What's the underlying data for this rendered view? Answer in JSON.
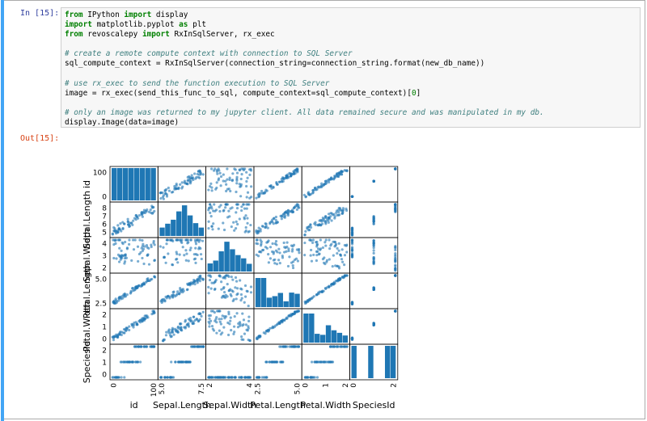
{
  "cell": {
    "in_prompt": "In [15]:",
    "out_prompt": "Out[15]:",
    "code": [
      [
        {
          "text": "from",
          "style": "keyword"
        },
        {
          "text": " IPython "
        },
        {
          "text": "import",
          "style": "keyword"
        },
        {
          "text": " display"
        }
      ],
      [
        {
          "text": "import",
          "style": "keyword"
        },
        {
          "text": " matplotlib.pyplot "
        },
        {
          "text": "as",
          "style": "keyword"
        },
        {
          "text": " plt"
        }
      ],
      [
        {
          "text": "from",
          "style": "keyword"
        },
        {
          "text": " revoscalepy "
        },
        {
          "text": "import",
          "style": "keyword"
        },
        {
          "text": " RxInSqlServer, rx_exec"
        }
      ],
      [],
      [
        {
          "text": "# create a remote compute context with connection to SQL Server",
          "style": "comment"
        }
      ],
      [
        {
          "text": "sql_compute_context = RxInSqlServer(connection_string=connection_string.format(new_db_name))"
        }
      ],
      [],
      [
        {
          "text": "# use rx_exec to send the function execution to SQL Server",
          "style": "comment"
        }
      ],
      [
        {
          "text": "image = rx_exec(send_this_func_to_sql, compute_context=sql_compute_context)["
        },
        {
          "text": "0",
          "style": "number"
        },
        {
          "text": "]"
        }
      ],
      [],
      [
        {
          "text": "# only an image was returned to my jupyter client. All data remained secure and was manipulated in my db.",
          "style": "comment"
        }
      ],
      [
        {
          "text": "display.Image(data=image)"
        }
      ]
    ]
  },
  "figure": {
    "rows": [
      {
        "label": "id",
        "ticks": [
          "100",
          "0"
        ]
      },
      {
        "label": "Sepal.Length",
        "ticks": [
          "8",
          "7",
          "6",
          "5"
        ]
      },
      {
        "label": "Sepal.Width",
        "ticks": [
          "4",
          "3",
          "2"
        ]
      },
      {
        "label": "Petal.Length",
        "ticks": [
          "5.0",
          "2.5"
        ]
      },
      {
        "label": "Petal.Width",
        "ticks": [
          "2",
          "1",
          "0"
        ]
      },
      {
        "label": "SpeciesId",
        "ticks": [
          "2",
          "1",
          "0"
        ]
      }
    ],
    "columns": [
      {
        "label": "id",
        "ticks": [
          "0",
          "100"
        ]
      },
      {
        "label": "Sepal.Length",
        "ticks": [
          "5.0",
          "7.5"
        ]
      },
      {
        "label": "Sepal.Width",
        "ticks": [
          "2",
          "4"
        ]
      },
      {
        "label": "Petal.Length",
        "ticks": [
          "2.5",
          "5.0"
        ]
      },
      {
        "label": "Petal.Width",
        "ticks": [
          "0",
          "1",
          "2"
        ]
      },
      {
        "label": "SpeciesId",
        "ticks": [
          "0",
          "2"
        ]
      }
    ]
  }
}
